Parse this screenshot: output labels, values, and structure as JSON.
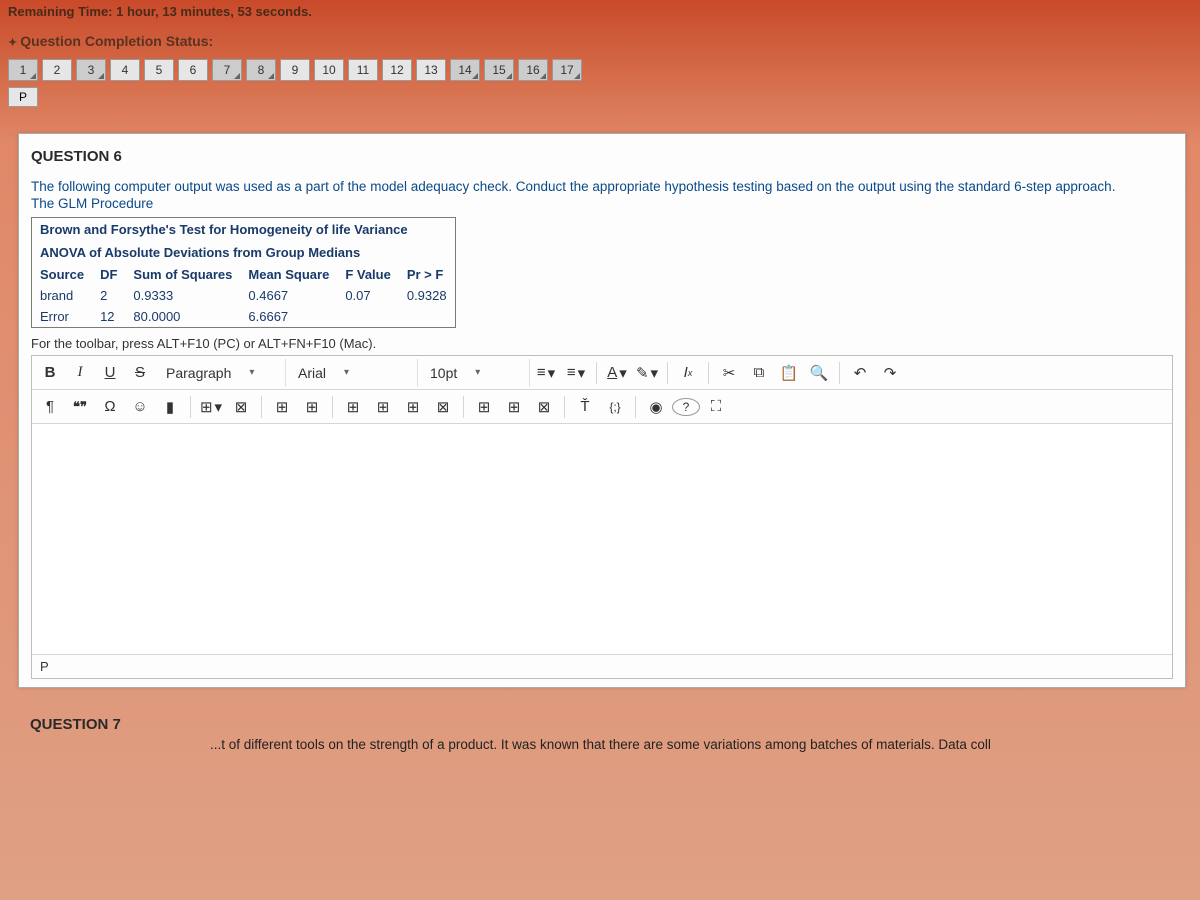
{
  "timer": "Remaining Time: 1 hour, 13 minutes, 53 seconds.",
  "status_label": "Question Completion Status:",
  "qnav": [
    {
      "n": "1",
      "marked": true
    },
    {
      "n": "2",
      "marked": false
    },
    {
      "n": "3",
      "marked": true
    },
    {
      "n": "4",
      "marked": false
    },
    {
      "n": "5",
      "marked": false
    },
    {
      "n": "6",
      "marked": false
    },
    {
      "n": "7",
      "marked": true
    },
    {
      "n": "8",
      "marked": true
    },
    {
      "n": "9",
      "marked": false
    },
    {
      "n": "10",
      "marked": false
    },
    {
      "n": "11",
      "marked": false
    },
    {
      "n": "12",
      "marked": false
    },
    {
      "n": "13",
      "marked": false
    },
    {
      "n": "14",
      "marked": true
    },
    {
      "n": "15",
      "marked": true
    },
    {
      "n": "16",
      "marked": true
    },
    {
      "n": "17",
      "marked": true
    }
  ],
  "p_label": "P",
  "question6": {
    "title": "QUESTION 6",
    "prompt_line1": "The following computer output was used as a part of the model adequacy check. Conduct the appropriate hypothesis testing based on the output using the standard 6-step approach.",
    "prompt_line2": "The GLM Procedure",
    "table": {
      "caption1": "Brown and Forsythe's Test for Homogeneity of life Variance",
      "caption2": "ANOVA of Absolute Deviations from Group Medians",
      "headers": [
        "Source",
        "DF",
        "Sum of Squares",
        "Mean Square",
        "F Value",
        "Pr > F"
      ],
      "rows": [
        [
          "brand",
          "2",
          "0.9333",
          "0.4667",
          "0.07",
          "0.9328"
        ],
        [
          "Error",
          "12",
          "80.0000",
          "6.6667",
          "",
          ""
        ]
      ]
    },
    "toolbar_hint": "For the toolbar, press ALT+F10 (PC) or ALT+FN+F10 (Mac).",
    "footer_path": "P"
  },
  "toolbar": {
    "bold": "B",
    "italic": "I",
    "underline": "U",
    "strike": "S",
    "format": "Paragraph",
    "font": "Arial",
    "size": "10pt",
    "bullet": "≡",
    "numbered": "≡",
    "textcolor": "A",
    "highlight": "✎",
    "clearfmt": "I✕",
    "cut": "✂",
    "copy": "⧉",
    "paste": "📋",
    "find": "Q",
    "undo": "↶",
    "redo": "↷",
    "para": "¶",
    "quote": "❝",
    "omega": "Ω",
    "emoji": "☺",
    "bookmark": "▮",
    "table": "⊞",
    "tablex": "⊠",
    "t1": "⊞",
    "t2": "⊞",
    "t3": "⊞",
    "t4": "⊞",
    "t5": "⊞",
    "t6": "⊠",
    "t7": "⊞",
    "t8": "⊞",
    "t9": "⊠",
    "acc": "Ť",
    "braces": "{;}",
    "rec": "◉",
    "help": "?",
    "full": "⛶"
  },
  "question7": {
    "title": "QUESTION 7",
    "fragment": "...t of different tools on the strength of a product. It was known that there are some variations among batches of materials. Data coll"
  }
}
